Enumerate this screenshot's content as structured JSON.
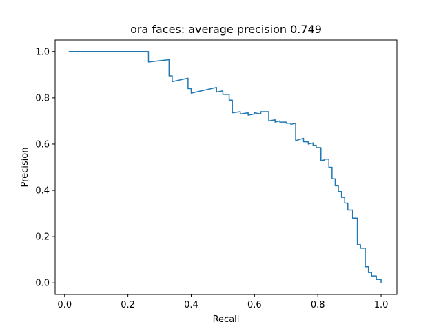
{
  "chart_data": {
    "type": "line",
    "title": "ora faces: average precision 0.749",
    "xlabel": "Recall",
    "ylabel": "Precision",
    "xlim": [
      -0.03,
      1.05
    ],
    "ylim": [
      -0.05,
      1.05
    ],
    "xticks": [
      0.0,
      0.2,
      0.4,
      0.6,
      0.8,
      1.0
    ],
    "yticks": [
      0.0,
      0.2,
      0.4,
      0.6,
      0.8,
      1.0
    ],
    "xtick_labels": [
      "0.0",
      "0.2",
      "0.4",
      "0.6",
      "0.8",
      "1.0"
    ],
    "ytick_labels": [
      "0.0",
      "0.2",
      "0.4",
      "0.6",
      "0.8",
      "1.0"
    ],
    "grid": false,
    "line_color": "#1f77b4",
    "series": [
      {
        "x": [
          0.013,
          0.265,
          0.265,
          0.33,
          0.33,
          0.34,
          0.34,
          0.39,
          0.39,
          0.4,
          0.4,
          0.48,
          0.48,
          0.5,
          0.5,
          0.52,
          0.52,
          0.53,
          0.53,
          0.555,
          0.555,
          0.58,
          0.58,
          0.6,
          0.6,
          0.62,
          0.62,
          0.645,
          0.645,
          0.665,
          0.665,
          0.68,
          0.68,
          0.7,
          0.7,
          0.715,
          0.715,
          0.73,
          0.73,
          0.755,
          0.755,
          0.77,
          0.77,
          0.785,
          0.785,
          0.795,
          0.795,
          0.81,
          0.81,
          0.82,
          0.82,
          0.835,
          0.835,
          0.845,
          0.845,
          0.855,
          0.855,
          0.865,
          0.865,
          0.875,
          0.875,
          0.885,
          0.885,
          0.895,
          0.895,
          0.91,
          0.91,
          0.925,
          0.925,
          0.935,
          0.935,
          0.95,
          0.95,
          0.96,
          0.96,
          0.97,
          0.97,
          0.985,
          0.985,
          1.0,
          1.0
        ],
        "y": [
          1.0,
          1.0,
          0.955,
          0.965,
          0.895,
          0.895,
          0.87,
          0.885,
          0.84,
          0.84,
          0.82,
          0.845,
          0.825,
          0.83,
          0.815,
          0.815,
          0.79,
          0.79,
          0.735,
          0.74,
          0.73,
          0.735,
          0.725,
          0.73,
          0.735,
          0.73,
          0.74,
          0.74,
          0.7,
          0.705,
          0.695,
          0.7,
          0.695,
          0.695,
          0.69,
          0.69,
          0.685,
          0.69,
          0.615,
          0.625,
          0.61,
          0.61,
          0.6,
          0.605,
          0.595,
          0.595,
          0.585,
          0.585,
          0.53,
          0.53,
          0.535,
          0.535,
          0.5,
          0.5,
          0.45,
          0.45,
          0.42,
          0.42,
          0.395,
          0.395,
          0.37,
          0.37,
          0.345,
          0.345,
          0.315,
          0.315,
          0.28,
          0.28,
          0.165,
          0.165,
          0.15,
          0.15,
          0.07,
          0.07,
          0.045,
          0.045,
          0.03,
          0.03,
          0.015,
          0.015,
          0.0
        ]
      }
    ]
  }
}
